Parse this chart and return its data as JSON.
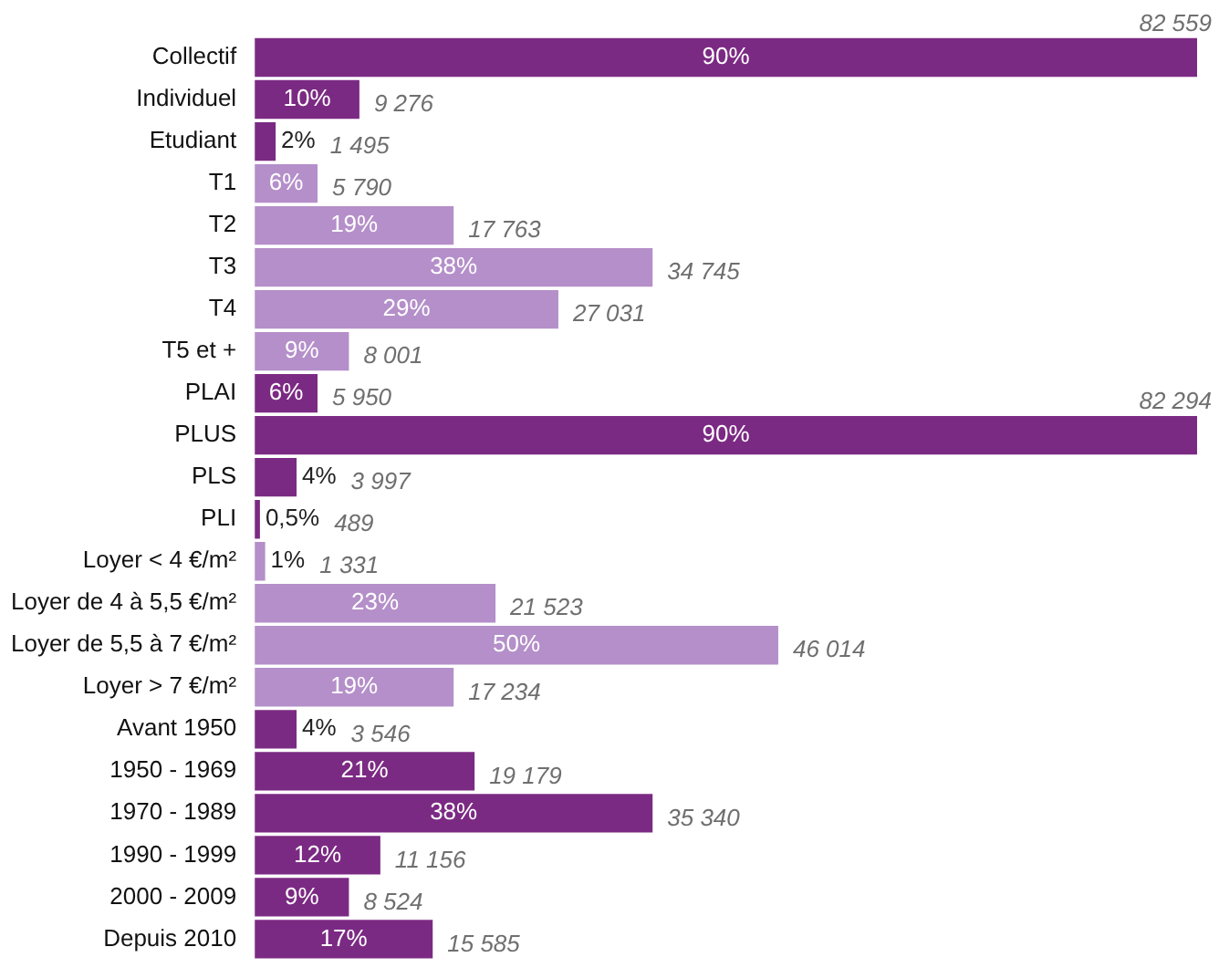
{
  "chart_data": {
    "type": "bar",
    "orientation": "horizontal",
    "categories": [
      "Collectif",
      "Individuel",
      "Etudiant",
      "T1",
      "T2",
      "T3",
      "T4",
      "T5 et +",
      "PLAI",
      "PLUS",
      "PLS",
      "PLI",
      "Loyer < 4 €/m²",
      "Loyer de 4 à 5,5 €/m²",
      "Loyer de 5,5 à 7 €/m²",
      "Loyer > 7 €/m²",
      "Avant 1950",
      "1950 - 1969",
      "1970 - 1989",
      "1990 - 1999",
      "2000 - 2009",
      "Depuis 2010"
    ],
    "values": [
      90,
      10,
      2,
      6,
      19,
      38,
      29,
      9,
      6,
      90,
      4,
      0.5,
      1,
      23,
      50,
      19,
      4,
      21,
      38,
      12,
      9,
      17
    ],
    "colors": [
      "#7b2a83",
      "#7b2a83",
      "#7b2a83",
      "#b48fc9",
      "#b48fc9",
      "#b48fc9",
      "#b48fc9",
      "#b48fc9",
      "#7b2a83",
      "#7b2a83",
      "#7b2a83",
      "#7b2a83",
      "#b48fc9",
      "#b48fc9",
      "#b48fc9",
      "#b48fc9",
      "#7b2a83",
      "#7b2a83",
      "#7b2a83",
      "#7b2a83",
      "#7b2a83",
      "#7b2a83"
    ],
    "value_labels": [
      "90%",
      "10%",
      "2%",
      "6%",
      "19%",
      "38%",
      "29%",
      "9%",
      "6%",
      "90%",
      "4%",
      "0,5%",
      "1%",
      "23%",
      "50%",
      "19%",
      "4%",
      "21%",
      "38%",
      "12%",
      "9%",
      "17%"
    ],
    "annotations": [
      "82 559",
      "9 276",
      "1 495",
      "5 790",
      "17 763",
      "34 745",
      "27 031",
      "8 001",
      "5 950",
      "82 294",
      "3 997",
      "489",
      "1 331",
      "21 523",
      "46 014",
      "17 234",
      "3 546",
      "19 179",
      "35 340",
      "11 156",
      "8 524",
      "15 585"
    ]
  }
}
